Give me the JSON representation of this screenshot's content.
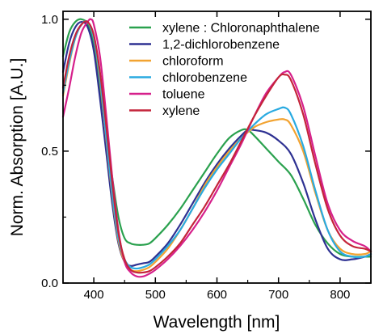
{
  "chart_data": {
    "type": "line",
    "title": "",
    "xlabel": "Wavelength [nm]",
    "ylabel": "Norm. Absorption [A.U.]",
    "xlim": [
      350,
      850
    ],
    "ylim": [
      0.0,
      1.03
    ],
    "xticks": [
      400,
      500,
      600,
      700,
      800
    ],
    "xtick_labels": [
      "400",
      "500",
      "600",
      "700",
      "800"
    ],
    "yticks": [
      0.0,
      0.5,
      1.0
    ],
    "ytick_labels": [
      "0.0",
      "0.5",
      "1.0"
    ],
    "grid": false,
    "legend_position": "top-right",
    "series": [
      {
        "name": "xylene : Chloronaphthalene",
        "color": "#2aa14e",
        "x": [
          350,
          360,
          370,
          380,
          390,
          400,
          410,
          420,
          430,
          440,
          450,
          460,
          470,
          480,
          490,
          500,
          520,
          540,
          560,
          580,
          600,
          620,
          640,
          650,
          660,
          680,
          700,
          720,
          740,
          760,
          780,
          800,
          820,
          840,
          850
        ],
        "y": [
          0.86,
          0.95,
          0.99,
          1.0,
          0.98,
          0.9,
          0.74,
          0.57,
          0.4,
          0.25,
          0.17,
          0.15,
          0.145,
          0.145,
          0.15,
          0.17,
          0.22,
          0.28,
          0.35,
          0.42,
          0.49,
          0.55,
          0.58,
          0.58,
          0.56,
          0.51,
          0.46,
          0.41,
          0.32,
          0.22,
          0.15,
          0.11,
          0.1,
          0.1,
          0.1
        ]
      },
      {
        "name": "1,2-dichlorobenzene",
        "color": "#2e3192",
        "x": [
          350,
          360,
          370,
          380,
          390,
          400,
          410,
          420,
          430,
          440,
          450,
          460,
          470,
          480,
          490,
          500,
          520,
          540,
          560,
          580,
          600,
          620,
          640,
          650,
          660,
          680,
          700,
          720,
          740,
          760,
          780,
          800,
          820,
          840,
          850
        ],
        "y": [
          0.8,
          0.91,
          0.97,
          0.99,
          0.97,
          0.88,
          0.7,
          0.5,
          0.3,
          0.15,
          0.08,
          0.065,
          0.07,
          0.075,
          0.08,
          0.1,
          0.15,
          0.22,
          0.3,
          0.38,
          0.45,
          0.51,
          0.56,
          0.58,
          0.58,
          0.57,
          0.54,
          0.49,
          0.38,
          0.24,
          0.13,
          0.09,
          0.09,
          0.1,
          0.11
        ]
      },
      {
        "name": "chloroform",
        "color": "#f2a331",
        "x": [
          350,
          360,
          370,
          380,
          390,
          400,
          410,
          420,
          430,
          440,
          450,
          460,
          470,
          480,
          490,
          500,
          520,
          540,
          560,
          580,
          600,
          620,
          640,
          660,
          680,
          700,
          710,
          720,
          740,
          760,
          780,
          800,
          820,
          840,
          850
        ],
        "y": [
          0.71,
          0.83,
          0.93,
          0.98,
          0.99,
          0.93,
          0.77,
          0.55,
          0.33,
          0.16,
          0.08,
          0.05,
          0.045,
          0.05,
          0.06,
          0.08,
          0.13,
          0.2,
          0.28,
          0.37,
          0.44,
          0.5,
          0.55,
          0.59,
          0.61,
          0.62,
          0.62,
          0.6,
          0.5,
          0.34,
          0.2,
          0.13,
          0.11,
          0.11,
          0.12
        ]
      },
      {
        "name": "chlorobenzene",
        "color": "#29aae1",
        "x": [
          350,
          360,
          370,
          380,
          390,
          400,
          410,
          420,
          430,
          440,
          450,
          460,
          470,
          480,
          490,
          500,
          520,
          540,
          560,
          580,
          600,
          620,
          640,
          660,
          680,
          700,
          710,
          720,
          740,
          760,
          780,
          800,
          820,
          840,
          850
        ],
        "y": [
          0.72,
          0.84,
          0.93,
          0.98,
          0.99,
          0.93,
          0.78,
          0.56,
          0.34,
          0.17,
          0.09,
          0.06,
          0.055,
          0.06,
          0.07,
          0.09,
          0.14,
          0.2,
          0.28,
          0.36,
          0.43,
          0.49,
          0.55,
          0.6,
          0.64,
          0.66,
          0.665,
          0.64,
          0.52,
          0.35,
          0.2,
          0.12,
          0.1,
          0.1,
          0.11
        ]
      },
      {
        "name": "toluene",
        "color": "#d6208b",
        "x": [
          350,
          360,
          370,
          380,
          390,
          395,
          400,
          410,
          420,
          430,
          440,
          450,
          460,
          470,
          480,
          490,
          500,
          520,
          540,
          560,
          580,
          600,
          620,
          640,
          660,
          680,
          700,
          710,
          720,
          740,
          760,
          780,
          800,
          820,
          840,
          850
        ],
        "y": [
          0.63,
          0.74,
          0.86,
          0.95,
          0.99,
          1.0,
          0.98,
          0.86,
          0.64,
          0.4,
          0.2,
          0.08,
          0.04,
          0.025,
          0.025,
          0.035,
          0.05,
          0.09,
          0.14,
          0.2,
          0.27,
          0.35,
          0.44,
          0.53,
          0.63,
          0.72,
          0.78,
          0.8,
          0.79,
          0.67,
          0.48,
          0.3,
          0.2,
          0.16,
          0.14,
          0.12
        ]
      },
      {
        "name": "xylene",
        "color": "#c4243a",
        "x": [
          350,
          360,
          370,
          380,
          390,
          400,
          410,
          420,
          430,
          440,
          450,
          460,
          470,
          480,
          490,
          500,
          520,
          540,
          560,
          580,
          600,
          620,
          640,
          660,
          680,
          700,
          710,
          720,
          740,
          760,
          780,
          800,
          820,
          840,
          850
        ],
        "y": [
          0.74,
          0.86,
          0.94,
          0.98,
          0.99,
          0.94,
          0.8,
          0.6,
          0.38,
          0.19,
          0.09,
          0.05,
          0.04,
          0.04,
          0.045,
          0.06,
          0.1,
          0.15,
          0.22,
          0.29,
          0.37,
          0.45,
          0.54,
          0.63,
          0.71,
          0.78,
          0.79,
          0.77,
          0.64,
          0.45,
          0.28,
          0.18,
          0.14,
          0.13,
          0.12
        ]
      }
    ]
  }
}
